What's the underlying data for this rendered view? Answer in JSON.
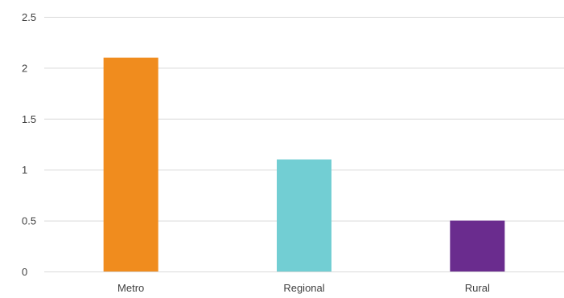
{
  "chart_data": {
    "type": "bar",
    "categories": [
      "Metro",
      "Regional",
      "Rural"
    ],
    "values": [
      2.1,
      1.1,
      0.5
    ],
    "colors": [
      "#F08C1E",
      "#72CED3",
      "#6A2C8E"
    ],
    "yticks": [
      "0",
      "0.5",
      "1",
      "1.5",
      "2",
      "2.5"
    ],
    "ylim": [
      0,
      2.5
    ],
    "grid": true,
    "title": "",
    "xlabel": "",
    "ylabel": ""
  }
}
